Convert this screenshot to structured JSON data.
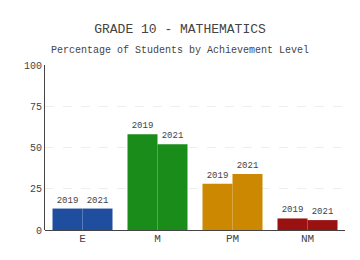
{
  "chart_data": {
    "type": "bar",
    "title": "GRADE 10 - MATHEMATICS",
    "subtitle": "Percentage of Students by Achievement Level",
    "categories": [
      "E",
      "M",
      "PM",
      "NM"
    ],
    "series": [
      {
        "name": "2019",
        "colors": [
          "#1f4e9e",
          "#1a8c1a",
          "#cc8800",
          "#991111"
        ],
        "values": [
          13,
          58,
          28,
          7
        ]
      },
      {
        "name": "2021",
        "colors": [
          "#1f4e9e",
          "#1a8c1a",
          "#cc8800",
          "#991111"
        ],
        "values": [
          13,
          52,
          34,
          6
        ]
      }
    ],
    "ylim": [
      0,
      100
    ],
    "yticks": [
      0,
      25,
      50,
      75,
      100
    ],
    "grid": true
  }
}
